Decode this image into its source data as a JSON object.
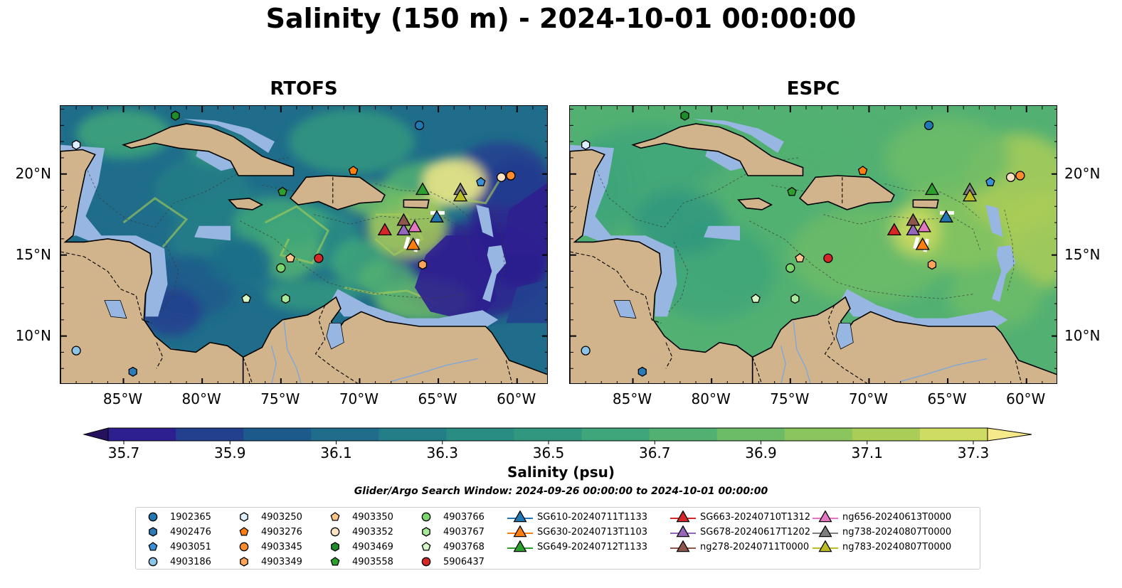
{
  "title": "Salinity (150 m) - 2024-10-01 00:00:00",
  "panels": [
    {
      "title": "RTOFS"
    },
    {
      "title": "ESPC"
    }
  ],
  "lon_ticks": [
    "85°W",
    "80°W",
    "75°W",
    "70°W",
    "65°W",
    "60°W"
  ],
  "lat_ticks": [
    "20°N",
    "15°N",
    "10°N"
  ],
  "map_extent": {
    "lon": [
      -89,
      -58
    ],
    "lat": [
      7,
      24.2
    ]
  },
  "colorbar": {
    "label": "Salinity (psu)",
    "ticks": [
      "35.7",
      "35.9",
      "36.1",
      "36.3",
      "36.5",
      "36.7",
      "36.9",
      "37.1",
      "37.3"
    ],
    "range": [
      35.7,
      37.4
    ],
    "colors": [
      "#26115e",
      "#2d1f8f",
      "#23408f",
      "#1c5a8b",
      "#1f6d8a",
      "#247e87",
      "#2a8d84",
      "#31987f",
      "#3ea67a",
      "#52b072",
      "#6cbc67",
      "#8ac55e",
      "#aacd57",
      "#cfdc62",
      "#f5e98a"
    ]
  },
  "search_window": "Glider/Argo Search Window: 2024-09-26 00:00:00 to 2024-10-01 00:00:00",
  "colors": {
    "land": "#d2b48c",
    "shelf": "#97b6e1",
    "coast": "#000000"
  },
  "legend": [
    {
      "label": "1902365",
      "shape": "circle",
      "color": "#1f77b4"
    },
    {
      "label": "4902476",
      "shape": "hexagon",
      "color": "#2c7bb6"
    },
    {
      "label": "4903051",
      "shape": "pentagon",
      "color": "#3a8fd6"
    },
    {
      "label": "4903186",
      "shape": "circle",
      "color": "#8cc4e8"
    },
    {
      "label": "4903250",
      "shape": "hexagon",
      "color": "#dfefff"
    },
    {
      "label": "4903276",
      "shape": "pentagon",
      "color": "#ff7f0e"
    },
    {
      "label": "4903345",
      "shape": "circle",
      "color": "#ff8c2a"
    },
    {
      "label": "4903349",
      "shape": "hexagon",
      "color": "#ffa55a"
    },
    {
      "label": "4903350",
      "shape": "pentagon",
      "color": "#ffc48c"
    },
    {
      "label": "4903352",
      "shape": "circle",
      "color": "#ffe2c4"
    },
    {
      "label": "4903469",
      "shape": "hexagon",
      "color": "#1e8c2a"
    },
    {
      "label": "4903558",
      "shape": "pentagon",
      "color": "#2ca02c"
    },
    {
      "label": "4903766",
      "shape": "circle",
      "color": "#7cd66e"
    },
    {
      "label": "4903767",
      "shape": "hexagon",
      "color": "#a8e89a"
    },
    {
      "label": "4903768",
      "shape": "pentagon",
      "color": "#d4f7c8"
    },
    {
      "label": "5906437",
      "shape": "circle",
      "color": "#d62728"
    },
    {
      "label": "SG610-20240711T1133",
      "shape": "triangle",
      "color": "#1f77b4"
    },
    {
      "label": "SG630-20240713T1103",
      "shape": "triangle",
      "color": "#ff7f0e"
    },
    {
      "label": "SG649-20240712T1133",
      "shape": "triangle",
      "color": "#2ca02c"
    },
    {
      "label": "SG663-20240710T1312",
      "shape": "triangle",
      "color": "#d62728"
    },
    {
      "label": "SG678-20240617T1202",
      "shape": "triangle",
      "color": "#9467bd"
    },
    {
      "label": "ng278-20240711T0000",
      "shape": "triangle",
      "color": "#8c564b"
    },
    {
      "label": "ng656-20240613T0000",
      "shape": "triangle",
      "color": "#e377c2"
    },
    {
      "label": "ng738-20240807T0000",
      "shape": "triangle",
      "color": "#7f7f7f"
    },
    {
      "label": "ng783-20240807T0000",
      "shape": "triangle",
      "color": "#bcbd22"
    }
  ],
  "markers": [
    {
      "id": "1902365",
      "lon": -66.2,
      "lat": 23.0
    },
    {
      "id": "4902476",
      "lon": -84.4,
      "lat": 7.8
    },
    {
      "id": "4903051",
      "lon": -62.3,
      "lat": 19.5
    },
    {
      "id": "4903186",
      "lon": -88.0,
      "lat": 9.1
    },
    {
      "id": "4903250",
      "lon": -88.0,
      "lat": 21.8
    },
    {
      "id": "4903276",
      "lon": -70.4,
      "lat": 20.2
    },
    {
      "id": "4903345",
      "lon": -60.4,
      "lat": 19.9
    },
    {
      "id": "4903349",
      "lon": -66.0,
      "lat": 14.4
    },
    {
      "id": "4903350",
      "lon": -74.4,
      "lat": 14.8
    },
    {
      "id": "4903352",
      "lon": -61.0,
      "lat": 19.8
    },
    {
      "id": "4903469",
      "lon": -81.7,
      "lat": 23.6
    },
    {
      "id": "4903558",
      "lon": -74.9,
      "lat": 18.9
    },
    {
      "id": "4903766",
      "lon": -75.0,
      "lat": 14.2
    },
    {
      "id": "4903767",
      "lon": -74.7,
      "lat": 12.3
    },
    {
      "id": "4903768",
      "lon": -77.2,
      "lat": 12.3
    },
    {
      "id": "5906437",
      "lon": -72.6,
      "lat": 14.8
    },
    {
      "id": "SG610-20240711T1133",
      "lon": -65.1,
      "lat": 17.3
    },
    {
      "id": "SG630-20240713T1103",
      "lon": -66.6,
      "lat": 15.6
    },
    {
      "id": "SG649-20240712T1133",
      "lon": -66.0,
      "lat": 19.0
    },
    {
      "id": "SG663-20240710T1312",
      "lon": -68.4,
      "lat": 16.5
    },
    {
      "id": "SG678-20240617T1202",
      "lon": -67.2,
      "lat": 16.5
    },
    {
      "id": "ng278-20240711T0000",
      "lon": -67.2,
      "lat": 17.1
    },
    {
      "id": "ng656-20240613T0000",
      "lon": -66.5,
      "lat": 16.7
    },
    {
      "id": "ng738-20240807T0000",
      "lon": -63.6,
      "lat": 19.0
    },
    {
      "id": "ng783-20240807T0000",
      "lon": -63.6,
      "lat": 18.6
    }
  ]
}
